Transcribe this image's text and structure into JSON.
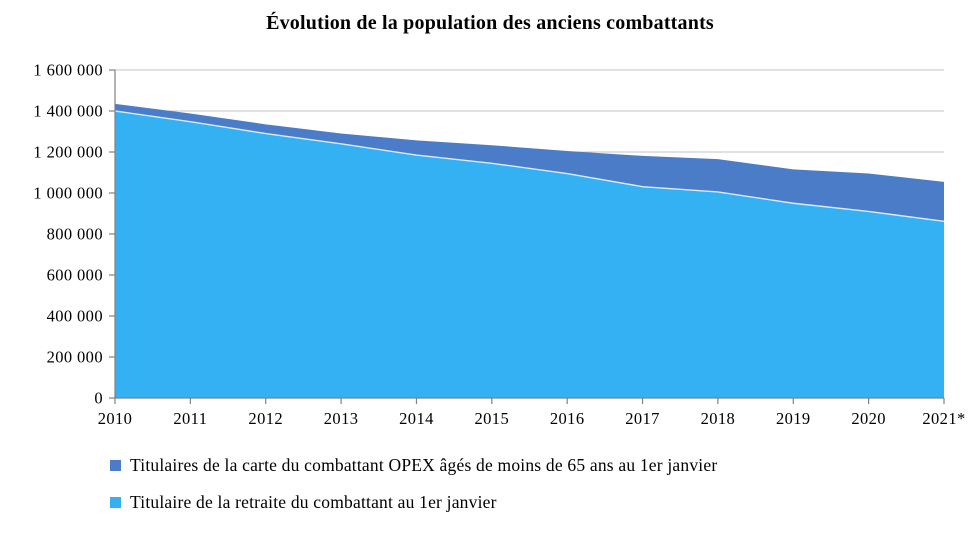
{
  "title": "Évolution de la population des anciens combattants",
  "chart_data": {
    "type": "area",
    "stacked": true,
    "title": "Évolution de la population des anciens combattants",
    "xlabel": "",
    "ylabel": "",
    "grid": true,
    "legend_position": "bottom-left",
    "ylim": [
      0,
      1600000
    ],
    "ytick_step": 200000,
    "x": [
      "2010",
      "2011",
      "2012",
      "2013",
      "2014",
      "2015",
      "2016",
      "2017",
      "2018",
      "2019",
      "2020",
      "2021*"
    ],
    "series": [
      {
        "name": "Titulaire de la retraite du combattant au 1er janvier",
        "stack_order": "bottom",
        "color": "#33B1F3",
        "values": [
          1400000,
          1348000,
          1290000,
          1240000,
          1185000,
          1145000,
          1095000,
          1031000,
          1005000,
          950000,
          910000,
          862000
        ]
      },
      {
        "name": "Titulaires de la carte du combattant OPEX âgés de moins de 65 ans au 1er janvier",
        "stack_order": "top",
        "color": "#4A7CC7",
        "values": [
          35000,
          40000,
          45000,
          50000,
          72000,
          88000,
          110000,
          150000,
          160000,
          165000,
          185000,
          192000
        ]
      }
    ],
    "yticks": [
      {
        "value": 1600000,
        "label": "1 600 000"
      },
      {
        "value": 1400000,
        "label": "1 400 000"
      },
      {
        "value": 1200000,
        "label": "1 200 000"
      },
      {
        "value": 1000000,
        "label": "1 000 000"
      },
      {
        "value": 800000,
        "label": "800 000"
      },
      {
        "value": 600000,
        "label": "600 000"
      },
      {
        "value": 400000,
        "label": "400 000"
      },
      {
        "value": 200000,
        "label": "200 000"
      },
      {
        "value": 0,
        "label": "0"
      }
    ]
  },
  "legend": {
    "items": [
      {
        "label": "Titulaires de la carte du combattant OPEX âgés de moins de 65 ans au 1er janvier",
        "color": "#4A7CC7"
      },
      {
        "label": "Titulaire de la retraite du combattant au 1er janvier",
        "color": "#33B1F3"
      }
    ]
  },
  "colors": {
    "background": "#FFFFFF",
    "gridline": "#C3C3C3",
    "axis": "#808080",
    "series_boundary": "rgba(255,255,255,0.8)",
    "text": "#000000"
  }
}
